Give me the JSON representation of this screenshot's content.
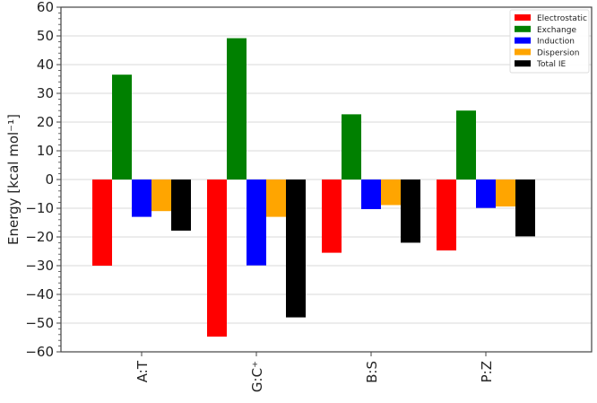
{
  "chart_data": {
    "type": "bar",
    "title": "",
    "xlabel": "",
    "ylabel": "Energy [kcal mol⁻¹]",
    "ylim": [
      -60,
      60
    ],
    "yticks": [
      60,
      50,
      40,
      30,
      20,
      10,
      0,
      -10,
      -20,
      -30,
      -40,
      -50,
      -60
    ],
    "grid": "horizontal",
    "legend_position": "upper right",
    "categories": [
      "A:T",
      "G:C⁺",
      "B:S",
      "P:Z"
    ],
    "series": [
      {
        "name": "Electrostatic",
        "color": "#ff0000",
        "values": [
          -30.0,
          -54.7,
          -25.5,
          -24.7
        ]
      },
      {
        "name": "Exchange",
        "color": "#008000",
        "values": [
          36.5,
          49.2,
          22.7,
          24.0
        ]
      },
      {
        "name": "Induction",
        "color": "#0000ff",
        "values": [
          -13.0,
          -29.9,
          -10.3,
          -9.9
        ]
      },
      {
        "name": "Dispersion",
        "color": "#ffa500",
        "values": [
          -11.0,
          -13.0,
          -8.9,
          -9.4
        ]
      },
      {
        "name": "Total IE",
        "color": "#000000",
        "values": [
          -17.8,
          -48.0,
          -22.0,
          -19.8
        ]
      }
    ]
  }
}
